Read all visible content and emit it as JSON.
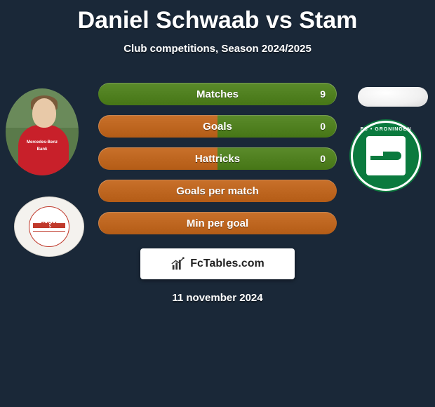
{
  "title": "Daniel Schwaab vs Stam",
  "subtitle": "Club competitions, Season 2024/2025",
  "date": "11 november 2024",
  "watermark": "FcTables.com",
  "colors": {
    "left_bar": "#c8702a",
    "right_bar": "#5a8a2a",
    "background": "#1a2838"
  },
  "left_player": {
    "name": "Daniel Schwaab",
    "club": "PSV",
    "club_badge_text": "PSV"
  },
  "right_player": {
    "name": "Stam",
    "club": "FC Groningen",
    "club_badge_text": "FC • GRONINGEN"
  },
  "stats": [
    {
      "label": "Matches",
      "left_value": "",
      "right_value": "9",
      "left_pct": 0,
      "right_pct": 100
    },
    {
      "label": "Goals",
      "left_value": "",
      "right_value": "0",
      "left_pct": 50,
      "right_pct": 50
    },
    {
      "label": "Hattricks",
      "left_value": "",
      "right_value": "0",
      "left_pct": 50,
      "right_pct": 50
    },
    {
      "label": "Goals per match",
      "left_value": "",
      "right_value": "",
      "left_pct": 100,
      "right_pct": 0
    },
    {
      "label": "Min per goal",
      "left_value": "",
      "right_value": "",
      "left_pct": 100,
      "right_pct": 0
    }
  ]
}
